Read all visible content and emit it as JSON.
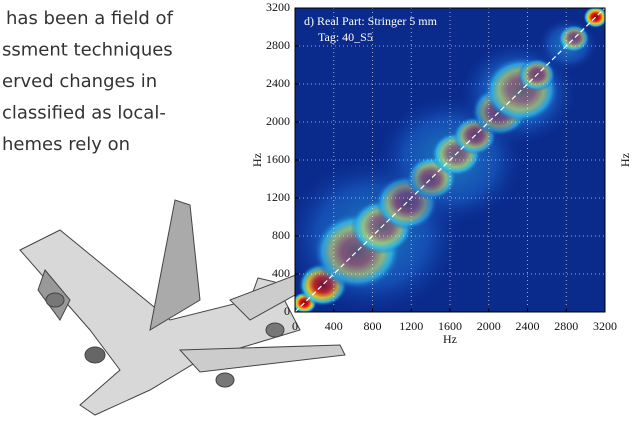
{
  "text_lines": [
    "has been a field of",
    "ssment techniques",
    "erved changes in",
    "classified as local-",
    "hemes rely on"
  ],
  "chart_data": {
    "type": "heatmap",
    "title": "d) Real Part: Stringer 5 mm",
    "annotation": "Tag: 40_S5",
    "x_label": "Hz",
    "y_label": "Hz",
    "xlim": [
      0,
      3200
    ],
    "ylim": [
      0,
      3200
    ],
    "xticks": [
      0,
      400,
      800,
      1200,
      1600,
      2000,
      2400,
      2800,
      3200
    ],
    "yticks": [
      0,
      400,
      800,
      1200,
      1600,
      2000,
      2400,
      2800,
      3200
    ],
    "grid": true
  },
  "edge_label": "Hz"
}
